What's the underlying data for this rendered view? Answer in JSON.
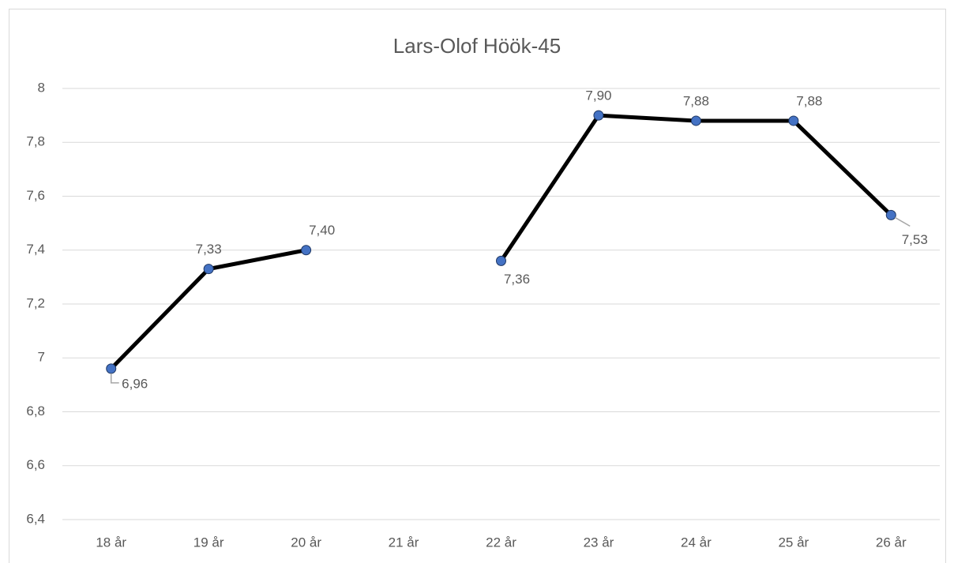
{
  "chart_data": {
    "type": "line",
    "title": "Lars-Olof Höök-45",
    "categories": [
      "18 år",
      "19 år",
      "20 år",
      "21 år",
      "22 år",
      "23 år",
      "24 år",
      "25 år",
      "26 år"
    ],
    "values": [
      6.96,
      7.33,
      7.4,
      null,
      7.36,
      7.9,
      7.88,
      7.88,
      7.53
    ],
    "value_labels": [
      "6,96",
      "7,33",
      "7,40",
      null,
      "7,36",
      "7,90",
      "7,88",
      "7,88",
      "7,53"
    ],
    "color": "#000000",
    "marker_color": "#4472c4",
    "ylim": [
      6.4,
      8
    ],
    "yticks": [
      {
        "value": 6.4,
        "label": "6,4"
      },
      {
        "value": 6.6,
        "label": "6,6"
      },
      {
        "value": 6.8,
        "label": "6,8"
      },
      7,
      {
        "value": 7.2,
        "label": "7,2"
      },
      {
        "value": 7.4,
        "label": "7,4"
      },
      {
        "value": 7.6,
        "label": "7,6"
      },
      {
        "value": 7.8,
        "label": "7,8"
      },
      8
    ],
    "grid": true
  }
}
